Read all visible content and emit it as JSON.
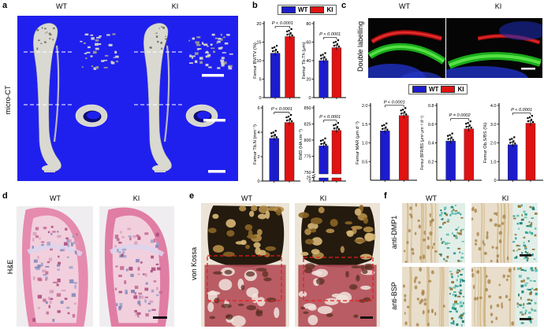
{
  "legend": {
    "wt": "WT",
    "ki": "KI"
  },
  "colors": {
    "wt": "#1c1ccd",
    "ki": "#e01212",
    "microct_bg": "#2020ee"
  },
  "panels": {
    "a": {
      "label": "a",
      "headers": [
        "WT",
        "KI"
      ],
      "row_label": "micro-CT"
    },
    "b": {
      "label": "b"
    },
    "c": {
      "label": "c",
      "headers": [
        "WT",
        "KI"
      ],
      "row_label": "Double labelling"
    },
    "d": {
      "label": "d",
      "headers": [
        "WT",
        "KI"
      ],
      "row_label": "H&E"
    },
    "e": {
      "label": "e",
      "headers": [
        "WT",
        "KI"
      ],
      "row_label": "von Kossa"
    },
    "f": {
      "label": "f",
      "headers": [
        "WT",
        "KI"
      ],
      "row_labels": [
        "anti-DMP1",
        "anti-BSP"
      ]
    }
  },
  "chart_data": [
    {
      "id": "femur-bvtv",
      "type": "bar",
      "panel": "b",
      "ylabel": "Femur BV/TV (%)",
      "categories": [
        "WT",
        "KI"
      ],
      "values": [
        12,
        16.5
      ],
      "yticks": [
        "0",
        "5",
        "10",
        "15",
        "20"
      ],
      "ylim": [
        0,
        20
      ],
      "p_label": "P < 0.0001",
      "n_points": 6
    },
    {
      "id": "femur-tbth",
      "type": "bar",
      "panel": "b",
      "ylabel": "Femur Tb.Th (μm)",
      "categories": [
        "WT",
        "KI"
      ],
      "values": [
        40,
        54
      ],
      "yticks": [
        "0",
        "20",
        "40",
        "60",
        "80"
      ],
      "ylim": [
        0,
        80
      ],
      "p_label": "P < 0.0001",
      "n_points": 6
    },
    {
      "id": "femur-tbn",
      "type": "bar",
      "panel": "b",
      "ylabel": "Femur Tb.N (mm⁻¹)",
      "categories": [
        "WT",
        "KI"
      ],
      "values": [
        3.5,
        4.8
      ],
      "yticks": [
        "0",
        "2",
        "4",
        "6"
      ],
      "ylim": [
        0,
        6
      ],
      "p_label": "P < 0.0001",
      "n_points": 6
    },
    {
      "id": "femur-bmd",
      "type": "bar",
      "panel": "b",
      "ylabel": "BMD (HA cm⁻³)",
      "categories": [
        "WT",
        "KI"
      ],
      "values": [
        791,
        815
      ],
      "yticks": [
        "750",
        "775",
        "800",
        "825",
        "850"
      ],
      "ylim": [
        750,
        850
      ],
      "axis_break": {
        "lower_ticks": [
          "25",
          "0"
        ]
      },
      "p_label": "P < 0.0001",
      "n_points": 6
    },
    {
      "id": "femur-mar",
      "type": "bar",
      "panel": "c",
      "ylabel": "Femur MAR (μm d⁻¹)",
      "categories": [
        "WT",
        "KI"
      ],
      "values": [
        1.32,
        1.73
      ],
      "yticks": [
        "0.5",
        "1.0",
        "1.5",
        "2.0"
      ],
      "ylim": [
        0,
        2
      ],
      "p_label": "P < 0.0001",
      "n_points": 6
    },
    {
      "id": "femur-bfr-bs",
      "type": "bar",
      "panel": "c",
      "ylabel": "Femur BFR/BS (μm³ μm⁻² d⁻¹)",
      "categories": [
        "WT",
        "KI"
      ],
      "values": [
        0.42,
        0.55
      ],
      "yticks": [
        "0.2",
        "0.4",
        "0.6",
        "0.8"
      ],
      "ylim": [
        0,
        0.8
      ],
      "p_label": "P = 0.0002",
      "n_points": 6
    },
    {
      "id": "femur-obs-bs",
      "type": "bar",
      "panel": "c",
      "ylabel": "Femur Ob.S/BS (%)",
      "categories": [
        "WT",
        "KI"
      ],
      "values": [
        1.9,
        3.05
      ],
      "yticks": [
        "0",
        "1.0",
        "2.0",
        "3.0",
        "4.0"
      ],
      "ylim": [
        0,
        4
      ],
      "p_label": "P < 0.0001",
      "n_points": 6
    }
  ]
}
